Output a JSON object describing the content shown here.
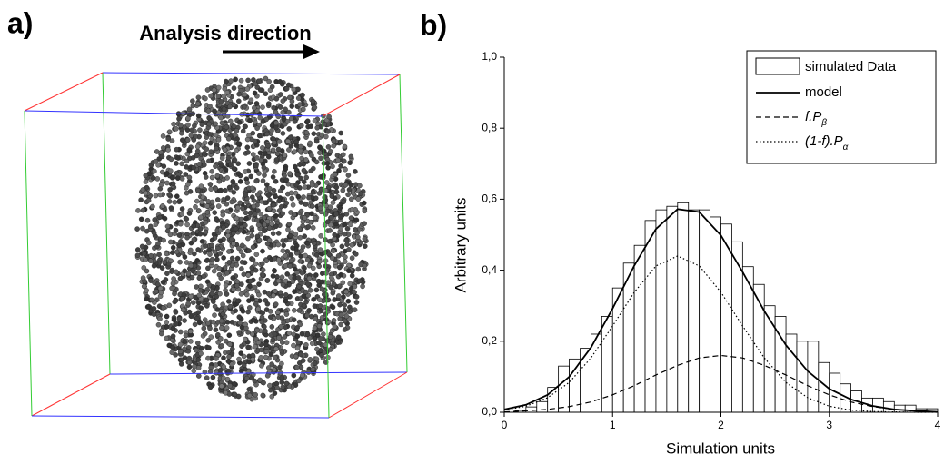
{
  "panel_a": {
    "label": "a)",
    "annotation": "Analysis direction"
  },
  "chart_data": {
    "type": "histogram",
    "panel_label": "b)",
    "x_label": "Simulation units",
    "y_label": "Arbitrary units",
    "xlim": [
      0,
      4
    ],
    "ylim": [
      0,
      1.0
    ],
    "xticks": [
      0,
      1,
      2,
      3,
      4
    ],
    "yticks": [
      {
        "value": 0,
        "label": "0,0"
      },
      {
        "value": 0.2,
        "label": "0,2"
      },
      {
        "value": 0.4,
        "label": "0,4"
      },
      {
        "value": 0.6,
        "label": "0,6"
      },
      {
        "value": 0.8,
        "label": "0,8"
      },
      {
        "value": 1.0,
        "label": "1,0"
      }
    ],
    "legend": "upper right",
    "histogram": {
      "name": "simulated Data",
      "color": "#ffffff",
      "bins": [
        0,
        0.1,
        0.2,
        0.3,
        0.4,
        0.5,
        0.6,
        0.7,
        0.8,
        0.9,
        1.0,
        1.1,
        1.2,
        1.3,
        1.4,
        1.5,
        1.6,
        1.7,
        1.8,
        1.9,
        2.0,
        2.1,
        2.2,
        2.3,
        2.4,
        2.5,
        2.6,
        2.7,
        2.8,
        2.9,
        3.0,
        3.1,
        3.2,
        3.3,
        3.4,
        3.5,
        3.6,
        3.7,
        3.8,
        3.9,
        4.0
      ],
      "counts": [
        0,
        0.005,
        0.015,
        0.03,
        0.07,
        0.13,
        0.15,
        0.18,
        0.22,
        0.27,
        0.35,
        0.42,
        0.47,
        0.54,
        0.57,
        0.58,
        0.59,
        0.57,
        0.57,
        0.55,
        0.53,
        0.48,
        0.41,
        0.36,
        0.3,
        0.27,
        0.22,
        0.2,
        0.2,
        0.14,
        0.11,
        0.08,
        0.06,
        0.04,
        0.04,
        0.03,
        0.02,
        0.02,
        0.01,
        0.01
      ]
    },
    "x": [
      0,
      0.2,
      0.4,
      0.6,
      0.8,
      1.0,
      1.2,
      1.4,
      1.6,
      1.8,
      2.0,
      2.2,
      2.4,
      2.6,
      2.8,
      3.0,
      3.2,
      3.4,
      3.6,
      3.8,
      4.0
    ],
    "series": [
      {
        "name": "model",
        "color": "#000000",
        "style": "solid",
        "values": [
          0.008,
          0.021,
          0.049,
          0.1,
          0.182,
          0.292,
          0.413,
          0.516,
          0.572,
          0.564,
          0.498,
          0.395,
          0.285,
          0.189,
          0.116,
          0.066,
          0.036,
          0.018,
          0.008,
          0.004,
          0.001
        ]
      },
      {
        "name": "f.P",
        "name_sub": "β",
        "color": "#000000",
        "style": "dashed",
        "values": [
          0.001,
          0.004,
          0.008,
          0.016,
          0.029,
          0.049,
          0.075,
          0.105,
          0.132,
          0.153,
          0.16,
          0.153,
          0.132,
          0.105,
          0.075,
          0.049,
          0.029,
          0.016,
          0.008,
          0.004,
          0.001
        ]
      },
      {
        "name": "(1-f).P",
        "name_sub": "α",
        "color": "#000000",
        "style": "dotted",
        "values": [
          0.006,
          0.017,
          0.041,
          0.084,
          0.153,
          0.243,
          0.338,
          0.412,
          0.44,
          0.412,
          0.338,
          0.243,
          0.153,
          0.084,
          0.041,
          0.017,
          0.006,
          0.002,
          0.001,
          0.0,
          0.0
        ]
      }
    ]
  }
}
